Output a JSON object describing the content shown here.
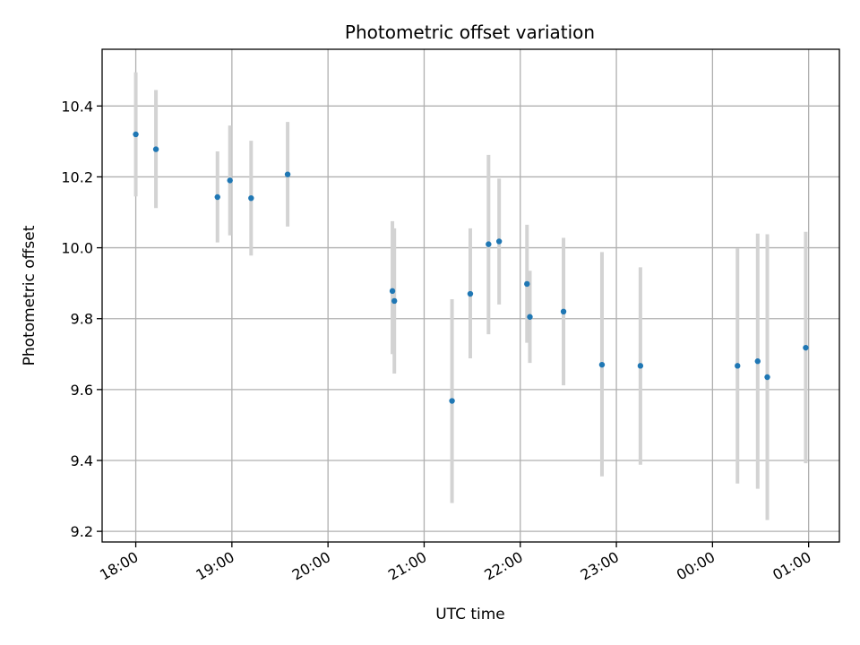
{
  "chart_data": {
    "type": "scatter",
    "title": "Photometric offset variation",
    "xlabel": "UTC time",
    "ylabel": "Photometric offset",
    "grid": true,
    "x_unit": "hours since 18:00 UTC",
    "xlim": [
      -0.35,
      7.32
    ],
    "ylim": [
      9.17,
      10.56
    ],
    "x_ticks": [
      {
        "x": 0,
        "label": "18:00"
      },
      {
        "x": 1,
        "label": "19:00"
      },
      {
        "x": 2,
        "label": "20:00"
      },
      {
        "x": 3,
        "label": "21:00"
      },
      {
        "x": 4,
        "label": "22:00"
      },
      {
        "x": 5,
        "label": "23:00"
      },
      {
        "x": 6,
        "label": "00:00"
      },
      {
        "x": 7,
        "label": "01:00"
      }
    ],
    "y_ticks": [
      {
        "y": 9.2,
        "label": "9.2"
      },
      {
        "y": 9.4,
        "label": "9.4"
      },
      {
        "y": 9.6,
        "label": "9.6"
      },
      {
        "y": 9.8,
        "label": "9.8"
      },
      {
        "y": 10.0,
        "label": "10.0"
      },
      {
        "y": 10.2,
        "label": "10.2"
      },
      {
        "y": 10.4,
        "label": "10.4"
      }
    ],
    "series": [
      {
        "color": "#1f77b4",
        "error_color": "#d3d3d3",
        "points": [
          {
            "x": 0.0,
            "y": 10.32,
            "low": 10.145,
            "high": 10.495
          },
          {
            "x": 0.21,
            "y": 10.278,
            "low": 10.112,
            "high": 10.445
          },
          {
            "x": 0.85,
            "y": 10.143,
            "low": 10.015,
            "high": 10.272
          },
          {
            "x": 0.98,
            "y": 10.19,
            "low": 10.035,
            "high": 10.345
          },
          {
            "x": 1.2,
            "y": 10.14,
            "low": 9.978,
            "high": 10.302
          },
          {
            "x": 1.58,
            "y": 10.207,
            "low": 10.06,
            "high": 10.355
          },
          {
            "x": 2.67,
            "y": 9.878,
            "low": 9.7,
            "high": 10.075
          },
          {
            "x": 2.69,
            "y": 9.85,
            "low": 9.645,
            "high": 10.055
          },
          {
            "x": 3.29,
            "y": 9.568,
            "low": 9.28,
            "high": 9.855
          },
          {
            "x": 3.48,
            "y": 9.87,
            "low": 9.688,
            "high": 10.055
          },
          {
            "x": 3.67,
            "y": 10.01,
            "low": 9.756,
            "high": 10.262
          },
          {
            "x": 3.78,
            "y": 10.018,
            "low": 9.84,
            "high": 10.195
          },
          {
            "x": 4.07,
            "y": 9.898,
            "low": 9.732,
            "high": 10.065
          },
          {
            "x": 4.1,
            "y": 9.805,
            "low": 9.675,
            "high": 9.935
          },
          {
            "x": 4.45,
            "y": 9.82,
            "low": 9.612,
            "high": 10.028
          },
          {
            "x": 4.85,
            "y": 9.67,
            "low": 9.355,
            "high": 9.988
          },
          {
            "x": 5.25,
            "y": 9.667,
            "low": 9.388,
            "high": 9.945
          },
          {
            "x": 6.26,
            "y": 9.667,
            "low": 9.335,
            "high": 9.998
          },
          {
            "x": 6.47,
            "y": 9.68,
            "low": 9.32,
            "high": 10.04
          },
          {
            "x": 6.57,
            "y": 9.635,
            "low": 9.232,
            "high": 10.038
          },
          {
            "x": 6.97,
            "y": 9.718,
            "low": 9.392,
            "high": 10.045
          }
        ]
      }
    ]
  }
}
